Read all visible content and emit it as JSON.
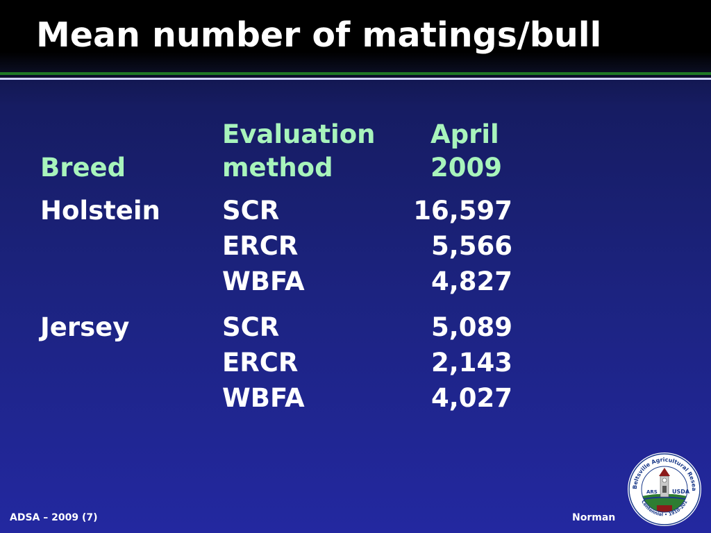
{
  "slide": {
    "title": "Mean number of matings/bull"
  },
  "table": {
    "headers": {
      "breed": "Breed",
      "method_line1": "Evaluation",
      "method_line2": "method",
      "period_line1": "April",
      "period_line2": "2009"
    },
    "rows": [
      {
        "breed": "Holstein",
        "method": "SCR",
        "value": "16,597"
      },
      {
        "method": "ERCR",
        "value": "5,566"
      },
      {
        "method": "WBFA",
        "value": "4,827"
      },
      {
        "breed": "Jersey",
        "method": "SCR",
        "value": "5,089"
      },
      {
        "method": "ERCR",
        "value": "2,143"
      },
      {
        "method": "WBFA",
        "value": "4,027"
      }
    ]
  },
  "footer": {
    "left": "ADSA – 2009 (7)",
    "right": "Norman"
  },
  "logo": {
    "ring_text": "Beltsville Agricultural Research Center",
    "centennial_text": "Centennial • 1910-2010",
    "usda_text": "USDA",
    "ars_text": "ARS"
  },
  "colors": {
    "header_green": "#a8f4bc",
    "text_white": "#ffffff",
    "background_blue": "#1c2380"
  }
}
